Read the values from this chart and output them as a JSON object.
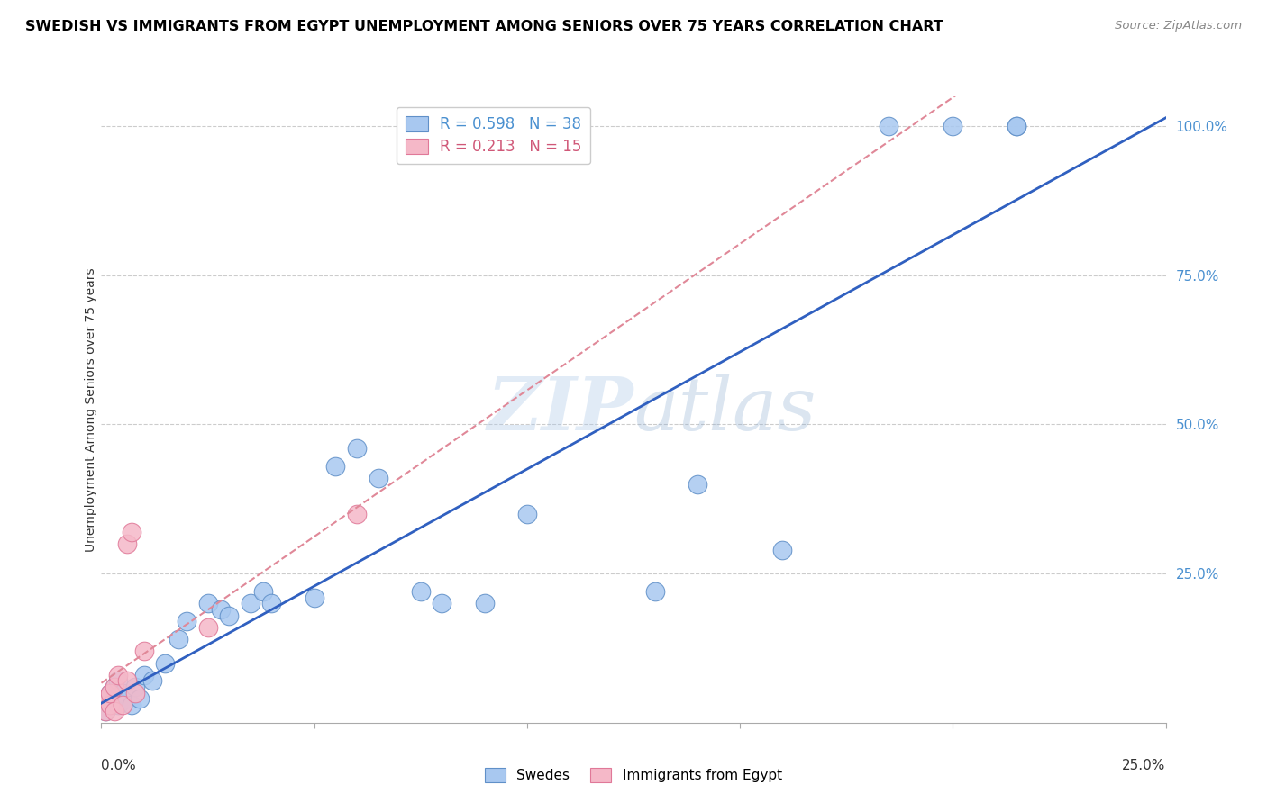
{
  "title": "SWEDISH VS IMMIGRANTS FROM EGYPT UNEMPLOYMENT AMONG SENIORS OVER 75 YEARS CORRELATION CHART",
  "source": "Source: ZipAtlas.com",
  "ylabel": "Unemployment Among Seniors over 75 years",
  "swedes_color": "#a8c8f0",
  "egypt_color": "#f5b8c8",
  "swedes_edge": "#6090c8",
  "egypt_edge": "#e07898",
  "trendline_swedes_color": "#3060c0",
  "trendline_egypt_color": "#e08898",
  "watermark_color": "#c8ddf0",
  "watermark_text": "ZIPatlas",
  "xlim": [
    0,
    0.25
  ],
  "ylim": [
    0,
    1.05
  ],
  "swedes_x": [
    0.001,
    0.002,
    0.002,
    0.003,
    0.003,
    0.004,
    0.004,
    0.005,
    0.006,
    0.007,
    0.008,
    0.009,
    0.01,
    0.012,
    0.015,
    0.018,
    0.02,
    0.025,
    0.028,
    0.03,
    0.035,
    0.038,
    0.04,
    0.05,
    0.055,
    0.06,
    0.065,
    0.075,
    0.08,
    0.09,
    0.1,
    0.13,
    0.14,
    0.16,
    0.185,
    0.2,
    0.215,
    0.215
  ],
  "swedes_y": [
    0.02,
    0.03,
    0.05,
    0.04,
    0.06,
    0.03,
    0.07,
    0.05,
    0.04,
    0.03,
    0.06,
    0.04,
    0.08,
    0.07,
    0.1,
    0.14,
    0.17,
    0.2,
    0.19,
    0.18,
    0.2,
    0.22,
    0.2,
    0.21,
    0.43,
    0.46,
    0.41,
    0.22,
    0.2,
    0.2,
    0.35,
    0.22,
    0.4,
    0.29,
    1.0,
    1.0,
    1.0,
    1.0
  ],
  "egypt_x": [
    0.001,
    0.001,
    0.002,
    0.002,
    0.003,
    0.003,
    0.004,
    0.005,
    0.006,
    0.006,
    0.007,
    0.008,
    0.01,
    0.025,
    0.06
  ],
  "egypt_y": [
    0.02,
    0.04,
    0.03,
    0.05,
    0.02,
    0.06,
    0.08,
    0.03,
    0.07,
    0.3,
    0.32,
    0.05,
    0.12,
    0.16,
    0.35
  ],
  "legend1_text1": "R = 0.598   N = 38",
  "legend1_text2": "R = 0.213   N = 15",
  "legend2_text1": "Swedes",
  "legend2_text2": "Immigrants from Egypt"
}
